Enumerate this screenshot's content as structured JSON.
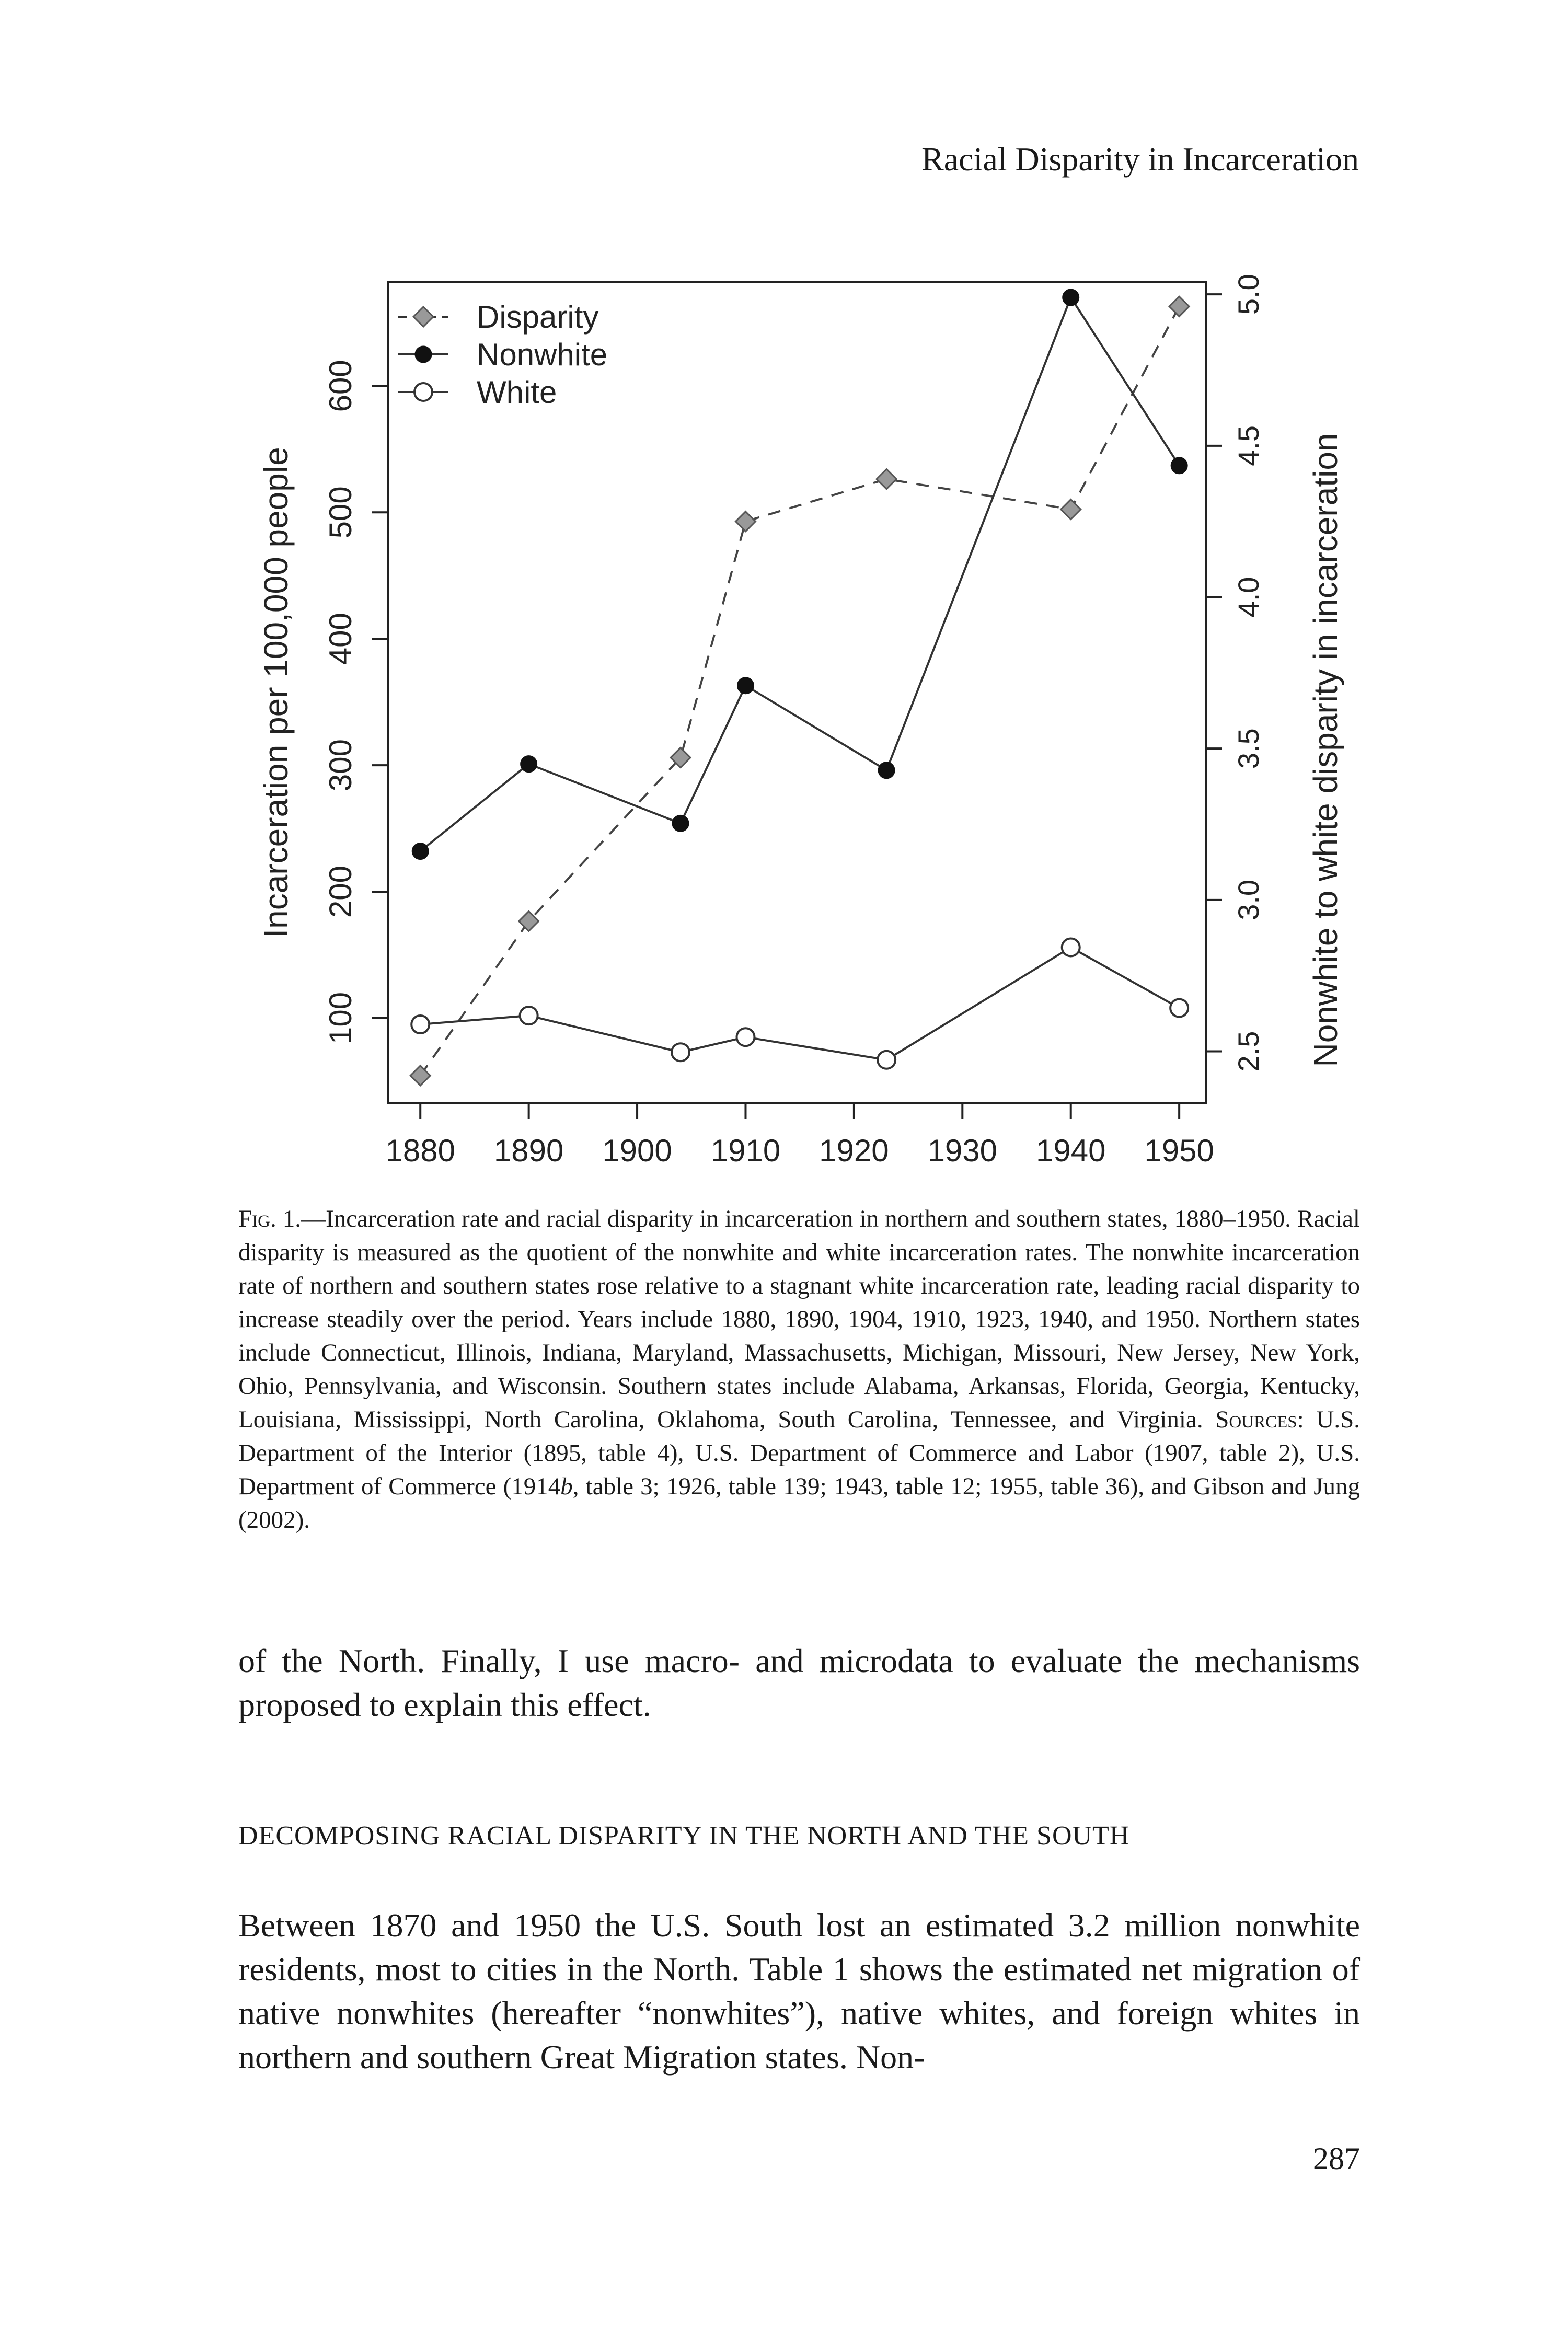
{
  "running_head": "Racial Disparity in Incarceration",
  "page_number": "287",
  "caption": {
    "label": "Fig. 1.",
    "text": "—Incarceration rate and racial disparity in incarceration in northern and southern states, 1880–1950. Racial disparity is measured as the quotient of the nonwhite and white incarceration rates. The nonwhite incarceration rate of northern and southern states rose relative to a stagnant white incarceration rate, leading racial disparity to increase steadily over the period. Years include 1880, 1890, 1904, 1910, 1923, 1940, and 1950. Northern states include Connecticut, Illinois, Indiana, Maryland, Massachusetts, Michigan, Missouri, New Jersey, New York, Ohio, Pennsylvania, and Wisconsin. Southern states include Alabama, Arkansas, Florida, Georgia, Kentucky, Louisiana, Mississippi, North Carolina, Oklahoma, South Carolina, Tennessee, and Virginia. ",
    "sources_label": "Sources",
    "sources_text": ": U.S. Department of the Interior (1895, table 4), U.S. Department of Commerce and Labor (1907, table 2), U.S. Department of Commerce (1914",
    "sources_italic": "b",
    "sources_text2": ", table 3; 1926, table 139; 1943, table 12; 1955, table 36), and Gibson and Jung (2002)."
  },
  "paragraph_1": "of the North. Finally, I use macro- and microdata to evaluate the mechanisms proposed to explain this effect.",
  "section_heading": "DECOMPOSING RACIAL DISPARITY IN THE NORTH AND THE SOUTH",
  "paragraph_2": "Between 1870 and 1950 the U.S. South lost an estimated 3.2 million nonwhite residents, most to cities in the North. Table 1 shows the estimated net migration of native nonwhites (hereafter “nonwhites”), native whites, and foreign whites in northern and southern Great Migration states. Non-",
  "chart_data": {
    "type": "line",
    "title": "",
    "xlabel": "",
    "ylabel": "Incarceration per 100,000 people",
    "y2label": "Nonwhite to white disparity in incarceration",
    "x": [
      1880,
      1890,
      1904,
      1910,
      1923,
      1940,
      1950
    ],
    "xlim": [
      1877,
      1952.5
    ],
    "ylim": [
      33,
      682
    ],
    "y2lim": [
      2.33,
      5.04
    ],
    "xticks": [
      "1880",
      "1890",
      "1900",
      "1910",
      "1920",
      "1930",
      "1940",
      "1950"
    ],
    "yticks": [
      "100",
      "200",
      "300",
      "400",
      "500",
      "600"
    ],
    "y2ticks": [
      "2.5",
      "3.0",
      "3.5",
      "4.0",
      "4.5",
      "5.0"
    ],
    "grid": false,
    "legend_position": "top-left",
    "series": [
      {
        "name": "Disparity",
        "axis": "right",
        "style": "dashed",
        "marker": "diamond",
        "color": "#888888",
        "values": [
          2.42,
          2.93,
          3.47,
          4.25,
          4.39,
          4.29,
          4.96
        ]
      },
      {
        "name": "Nonwhite",
        "axis": "left",
        "style": "solid",
        "marker": "filled-circle",
        "color": "#000000",
        "values": [
          232,
          301,
          254,
          363,
          296,
          670,
          537
        ]
      },
      {
        "name": "White",
        "axis": "left",
        "style": "solid",
        "marker": "open-circle",
        "color": "#000000",
        "values": [
          95,
          102,
          73,
          85,
          67,
          156,
          108
        ]
      }
    ]
  }
}
